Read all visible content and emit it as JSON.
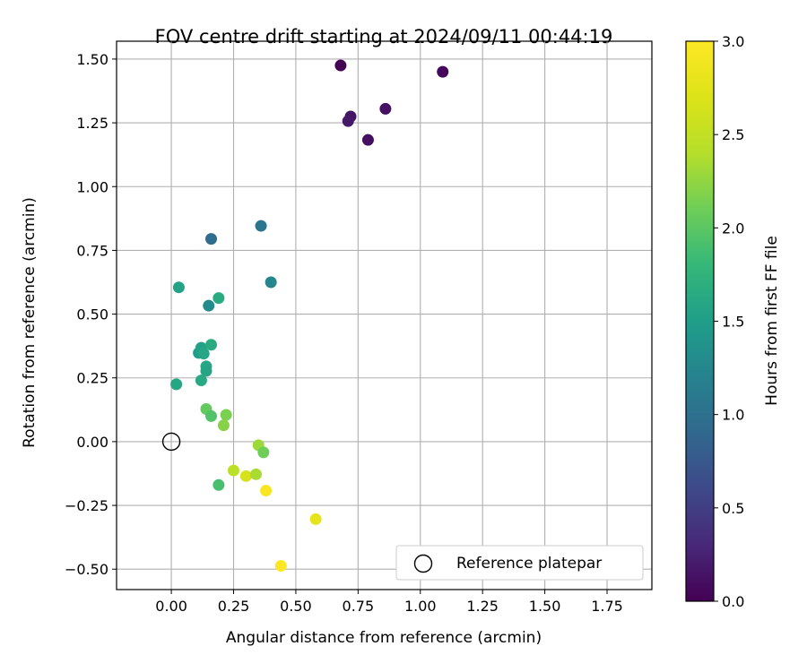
{
  "chart_data": {
    "type": "scatter",
    "title": "FOV centre drift starting at 2024/09/11 00:44:19",
    "xlabel": "Angular distance from reference (arcmin)",
    "ylabel": "Rotation from reference (arcmin)",
    "xlim": [
      -0.22,
      1.93
    ],
    "ylim": [
      -0.58,
      1.57
    ],
    "xticks": [
      0.0,
      0.25,
      0.5,
      0.75,
      1.0,
      1.25,
      1.5,
      1.75
    ],
    "xtick_labels": [
      "0.00",
      "0.25",
      "0.50",
      "0.75",
      "1.00",
      "1.25",
      "1.50",
      "1.75"
    ],
    "yticks": [
      -0.5,
      -0.25,
      0.0,
      0.25,
      0.5,
      0.75,
      1.0,
      1.25,
      1.5
    ],
    "ytick_labels": [
      "−0.50",
      "−0.25",
      "0.00",
      "0.25",
      "0.50",
      "0.75",
      "1.00",
      "1.25",
      "1.50"
    ],
    "grid": true,
    "colormap": "viridis",
    "colorbar": {
      "label": "Hours from first FF file",
      "range": [
        0.0,
        3.0
      ],
      "ticks": [
        0.0,
        0.5,
        1.0,
        1.5,
        2.0,
        2.5,
        3.0
      ],
      "tick_labels": [
        "0.0",
        "0.5",
        "1.0",
        "1.5",
        "2.0",
        "2.5",
        "3.0"
      ]
    },
    "legend": {
      "placement": "lower-right",
      "entries": [
        {
          "label": "Reference platepar",
          "marker": "open-circle"
        }
      ]
    },
    "reference_point": {
      "x": 0.0,
      "y": 0.0
    },
    "points": [
      {
        "x": 0.68,
        "y": 1.475,
        "hours": 0.0
      },
      {
        "x": 1.09,
        "y": 1.45,
        "hours": 0.05
      },
      {
        "x": 0.86,
        "y": 1.305,
        "hours": 0.12
      },
      {
        "x": 0.72,
        "y": 1.275,
        "hours": 0.15
      },
      {
        "x": 0.71,
        "y": 1.257,
        "hours": 0.18
      },
      {
        "x": 0.79,
        "y": 1.183,
        "hours": 0.1
      },
      {
        "x": 0.16,
        "y": 0.795,
        "hours": 0.95
      },
      {
        "x": 0.36,
        "y": 0.846,
        "hours": 1.05
      },
      {
        "x": 0.4,
        "y": 0.625,
        "hours": 1.25
      },
      {
        "x": 0.15,
        "y": 0.533,
        "hours": 1.3
      },
      {
        "x": 0.03,
        "y": 0.605,
        "hours": 1.55
      },
      {
        "x": 0.19,
        "y": 0.563,
        "hours": 1.65
      },
      {
        "x": 0.11,
        "y": 0.348,
        "hours": 1.5
      },
      {
        "x": 0.12,
        "y": 0.368,
        "hours": 1.55
      },
      {
        "x": 0.13,
        "y": 0.345,
        "hours": 1.6
      },
      {
        "x": 0.16,
        "y": 0.38,
        "hours": 1.65
      },
      {
        "x": 0.14,
        "y": 0.295,
        "hours": 1.6
      },
      {
        "x": 0.14,
        "y": 0.277,
        "hours": 1.58
      },
      {
        "x": 0.12,
        "y": 0.24,
        "hours": 1.62
      },
      {
        "x": 0.02,
        "y": 0.225,
        "hours": 1.6
      },
      {
        "x": 0.14,
        "y": 0.128,
        "hours": 2.05
      },
      {
        "x": 0.16,
        "y": 0.1,
        "hours": 1.95
      },
      {
        "x": 0.22,
        "y": 0.105,
        "hours": 2.15
      },
      {
        "x": 0.21,
        "y": 0.064,
        "hours": 2.2
      },
      {
        "x": 0.35,
        "y": -0.014,
        "hours": 2.3
      },
      {
        "x": 0.37,
        "y": -0.042,
        "hours": 2.1
      },
      {
        "x": 0.19,
        "y": -0.17,
        "hours": 1.9
      },
      {
        "x": 0.25,
        "y": -0.113,
        "hours": 2.45
      },
      {
        "x": 0.3,
        "y": -0.135,
        "hours": 2.65
      },
      {
        "x": 0.34,
        "y": -0.128,
        "hours": 2.35
      },
      {
        "x": 0.38,
        "y": -0.192,
        "hours": 2.95
      },
      {
        "x": 0.58,
        "y": -0.304,
        "hours": 2.8
      },
      {
        "x": 0.44,
        "y": -0.487,
        "hours": 3.0
      }
    ]
  }
}
